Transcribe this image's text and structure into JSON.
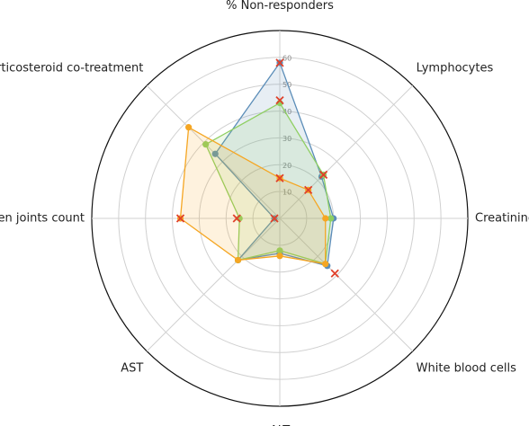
{
  "chart_data": {
    "type": "radar",
    "categories": [
      "% Non-responders",
      "Lymphocytes",
      "Creatininemia",
      "White blood cells",
      "ALT",
      "AST",
      "Swollen joints count",
      "Corticosteroid co-treatment"
    ],
    "ylim": [
      0,
      70
    ],
    "yticks": [
      10,
      20,
      30,
      40,
      50,
      60
    ],
    "grid": true,
    "series": [
      {
        "color": "#5b8db8",
        "fill_opacity": 0.15,
        "values": [
          58,
          22,
          20,
          25,
          13,
          22,
          2,
          34
        ]
      },
      {
        "color": "#8fcf62",
        "fill_opacity": 0.15,
        "values": [
          43,
          23,
          19,
          24,
          12,
          22,
          15,
          39
        ]
      },
      {
        "color": "#f5a623",
        "fill_opacity": 0.15,
        "values": [
          15,
          15,
          17,
          24,
          14,
          22,
          37,
          48
        ]
      },
      {
        "color": "#e0402a",
        "marker": "x",
        "values": [
          58,
          23,
          null,
          29,
          null,
          null,
          37,
          null
        ]
      },
      {
        "color": "#e0402a",
        "marker": "x",
        "values": [
          44,
          15,
          null,
          null,
          null,
          null,
          16,
          null
        ]
      },
      {
        "color": "#e0402a",
        "marker": "x",
        "values": [
          15,
          null,
          null,
          null,
          null,
          null,
          2,
          null
        ]
      }
    ]
  }
}
